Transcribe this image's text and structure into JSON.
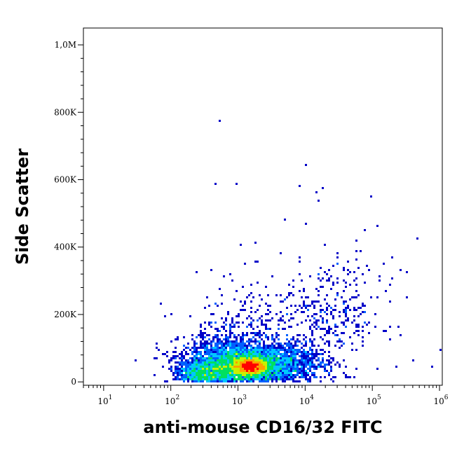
{
  "chart_data": {
    "type": "scatter",
    "title": "",
    "xlabel": "anti-mouse CD16/32 FITC",
    "ylabel": "Side Scatter",
    "x_scale": "log",
    "xlim": [
      5,
      1100000
    ],
    "ylim": [
      -10000,
      1050000
    ],
    "x_ticks": [
      {
        "value": 10,
        "base": "10",
        "exp": "1"
      },
      {
        "value": 100,
        "base": "10",
        "exp": "2"
      },
      {
        "value": 1000,
        "base": "10",
        "exp": "3"
      },
      {
        "value": 10000,
        "base": "10",
        "exp": "4"
      },
      {
        "value": 100000,
        "base": "10",
        "exp": "5"
      },
      {
        "value": 1000000,
        "base": "10",
        "exp": "6"
      }
    ],
    "y_ticks": [
      {
        "value": 0,
        "label": "0"
      },
      {
        "value": 200000,
        "label": "200K"
      },
      {
        "value": 400000,
        "label": "400K"
      },
      {
        "value": 600000,
        "label": "600K"
      },
      {
        "value": 800000,
        "label": "800K"
      },
      {
        "value": 1000000,
        "label": "1,0M"
      }
    ],
    "color_scale": [
      "#0000c8",
      "#0060ff",
      "#00c8ff",
      "#00e060",
      "#c8f000",
      "#ffa000",
      "#ff0000"
    ],
    "density_clusters": [
      {
        "x": 1500,
        "y": 45000,
        "sx_log": 0.12,
        "sy": 12000,
        "intensity": 1.0
      },
      {
        "x": 1200,
        "y": 50000,
        "sx_log": 0.3,
        "sy": 25000,
        "intensity": 0.75
      },
      {
        "x": 700,
        "y": 60000,
        "sx_log": 0.35,
        "sy": 45000,
        "intensity": 0.5
      },
      {
        "x": 4000,
        "y": 55000,
        "sx_log": 0.35,
        "sy": 30000,
        "intensity": 0.45
      },
      {
        "x": 300,
        "y": 30000,
        "sx_log": 0.2,
        "sy": 20000,
        "intensity": 0.35
      },
      {
        "x": 3000,
        "y": 150000,
        "sx_log": 0.55,
        "sy": 80000,
        "intensity": 0.12
      },
      {
        "x": 30000,
        "y": 200000,
        "sx_log": 0.35,
        "sy": 80000,
        "intensity": 0.1
      }
    ],
    "outliers": [
      [
        550,
        775000
      ],
      [
        10500,
        645000
      ],
      [
        450,
        590000
      ],
      [
        950,
        590000
      ],
      [
        8500,
        580000
      ],
      [
        18000,
        575000
      ],
      [
        15000,
        560000
      ],
      [
        16000,
        540000
      ],
      [
        95000,
        550000
      ],
      [
        120000,
        465000
      ],
      [
        80000,
        450000
      ],
      [
        480000,
        425000
      ],
      [
        1100,
        405000
      ],
      [
        260000,
        330000
      ],
      [
        320000,
        325000
      ],
      [
        1000000,
        95000
      ],
      [
        780000,
        45000
      ],
      [
        30,
        65000
      ],
      [
        70,
        230000
      ],
      [
        80,
        195000
      ],
      [
        160,
        50000
      ],
      [
        230,
        110000
      ],
      [
        400,
        330000
      ],
      [
        5000,
        480000
      ],
      [
        10000,
        470000
      ],
      [
        4200,
        380000
      ],
      [
        30000,
        380000
      ],
      [
        130000,
        300000
      ],
      [
        180000,
        290000
      ],
      [
        60000,
        310000
      ]
    ]
  }
}
